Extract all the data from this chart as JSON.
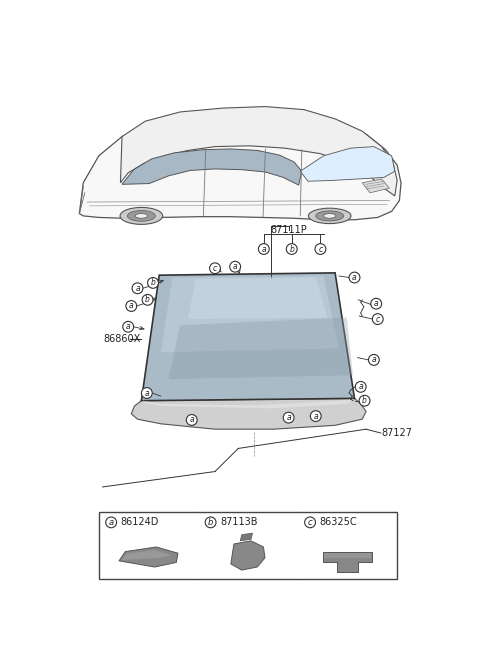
{
  "bg_color": "#ffffff",
  "outline_color": "#333333",
  "glass_color_dark": "#8a9ba8",
  "glass_color_mid": "#aabbc8",
  "glass_color_light": "#c5d5df",
  "part_labels": {
    "87111P": [
      295,
      193
    ],
    "86860X": [
      55,
      338
    ],
    "87127": [
      408,
      448
    ]
  },
  "legend_items": [
    {
      "circle_label": "a",
      "part_num": "86124D"
    },
    {
      "circle_label": "b",
      "part_num": "87113B"
    },
    {
      "circle_label": "c",
      "part_num": "86325C"
    }
  ],
  "font_size_part": 7,
  "font_size_legend": 7,
  "font_size_circle": 5.5
}
